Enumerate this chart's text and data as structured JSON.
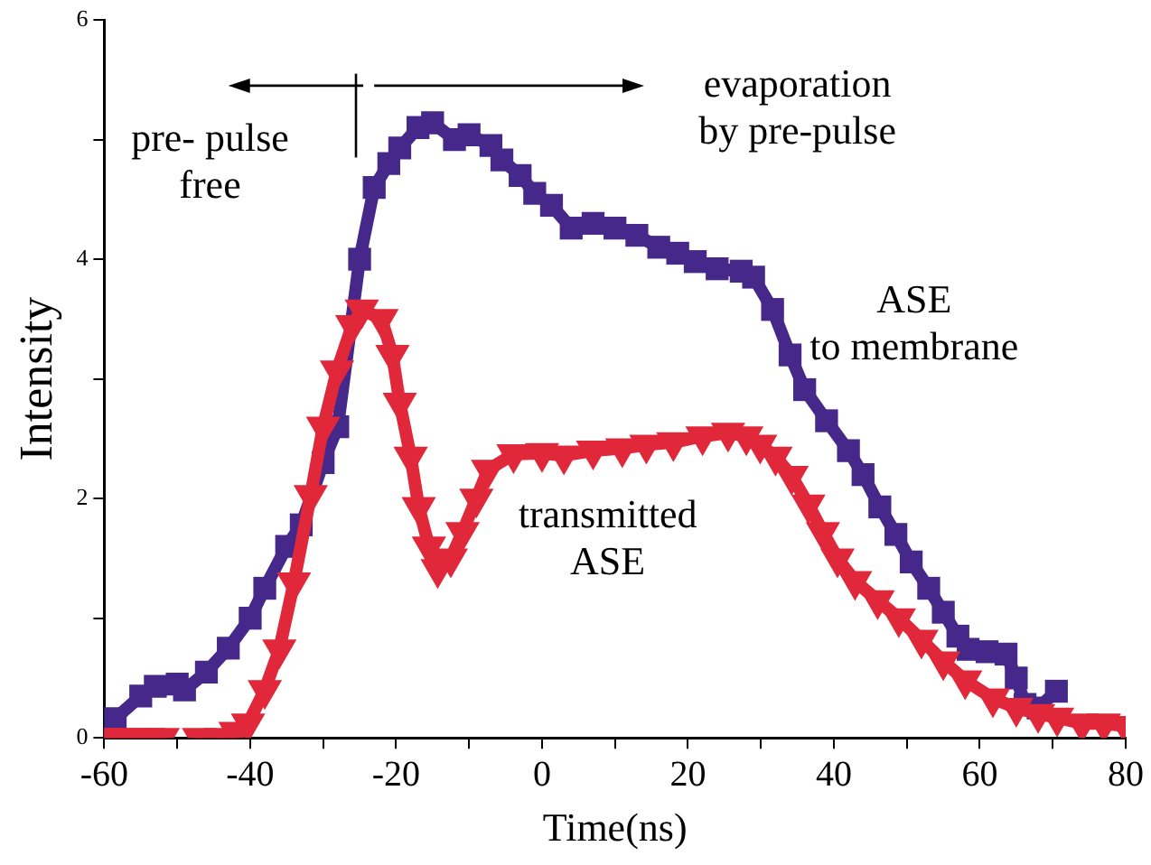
{
  "chart_data": {
    "type": "line",
    "xlabel": "Time(ns)",
    "ylabel": "Intensity",
    "xlim": [
      -60,
      80
    ],
    "ylim": [
      0,
      6
    ],
    "xticks": [
      -60,
      {
        "value": -50,
        "label": null
      },
      -40,
      {
        "value": -30,
        "label": null
      },
      -20,
      {
        "value": -10,
        "label": null
      },
      0,
      {
        "value": 10,
        "label": null
      },
      20,
      {
        "value": 30,
        "label": null
      },
      40,
      {
        "value": 50,
        "label": null
      },
      60,
      {
        "value": 70,
        "label": null
      },
      80
    ],
    "yticks": [
      0,
      {
        "value": 1,
        "label": null
      },
      2,
      {
        "value": 3,
        "label": null
      },
      4,
      {
        "value": 5,
        "label": null
      },
      6
    ],
    "grid": false,
    "legend": false,
    "annotations": [
      "pre- pulse\nfree",
      "evaporation\nby pre-pulse",
      "ASE\nto membrane",
      "transmitted\nASE"
    ],
    "series": [
      {
        "color": "#45288a",
        "marker": "square",
        "x": [
          -58.5,
          -55,
          -53,
          -50,
          -49,
          -46,
          -43,
          -40,
          -38,
          -35,
          -33,
          -30,
          -28,
          -25,
          -23,
          -21,
          -19.5,
          -17,
          -15,
          -12,
          -10,
          -7,
          -5.5,
          -3,
          -1,
          1.3,
          4,
          7,
          10,
          13,
          16,
          18.6,
          21,
          24,
          27.3,
          29,
          31.6,
          34,
          36,
          39,
          42,
          44,
          46.3,
          48.5,
          50.6,
          53,
          55,
          57,
          58.4,
          61,
          63.6,
          65,
          66.2,
          68,
          70.5
        ],
        "values": [
          0.16,
          0.35,
          0.43,
          0.45,
          0.4,
          0.55,
          0.75,
          1.0,
          1.25,
          1.6,
          1.78,
          2.3,
          2.6,
          4.0,
          4.6,
          4.8,
          4.93,
          5.1,
          5.14,
          5.0,
          5.04,
          4.95,
          4.83,
          4.7,
          4.55,
          4.45,
          4.26,
          4.3,
          4.26,
          4.2,
          4.1,
          4.05,
          3.98,
          3.92,
          3.9,
          3.85,
          3.58,
          3.2,
          2.91,
          2.65,
          2.4,
          2.2,
          1.93,
          1.7,
          1.47,
          1.25,
          1.05,
          0.85,
          0.74,
          0.72,
          0.7,
          0.5,
          0.28,
          0.25,
          0.39
        ]
      },
      {
        "color": "#e0283a",
        "marker": "triangle",
        "x": [
          -60,
          -58,
          -56,
          -54,
          -52,
          -49,
          -47,
          -44,
          -42,
          -40.3,
          -38,
          -36,
          -34,
          -31.7,
          -30,
          -28.1,
          -26,
          -24.7,
          -22,
          -20.5,
          -19.5,
          -18,
          -16.9,
          -15.5,
          -14.3,
          -12.5,
          -10.9,
          -9,
          -7.4,
          -3.9,
          0,
          3,
          7,
          11,
          14.3,
          18,
          22,
          25.5,
          28,
          29.9,
          32,
          34.2,
          36.5,
          38.5,
          40.5,
          42.9,
          46,
          48.9,
          52,
          55,
          58,
          61.8,
          65,
          68,
          70.6,
          74,
          77,
          80
        ],
        "values": [
          0,
          0,
          0,
          0,
          0,
          null,
          0,
          0,
          0.05,
          0.12,
          0.4,
          0.74,
          1.3,
          2.03,
          2.6,
          3.07,
          3.45,
          3.58,
          3.5,
          3.2,
          2.8,
          2.35,
          1.93,
          1.6,
          1.41,
          1.5,
          1.72,
          2.0,
          2.24,
          2.37,
          2.38,
          2.36,
          2.4,
          2.42,
          2.45,
          2.47,
          2.52,
          2.55,
          2.52,
          2.45,
          2.35,
          2.19,
          1.95,
          1.72,
          1.5,
          1.31,
          1.15,
          1.0,
          0.82,
          0.64,
          0.48,
          0.33,
          0.25,
          0.2,
          0.17,
          0.12,
          0.12,
          0.1
        ]
      }
    ]
  }
}
